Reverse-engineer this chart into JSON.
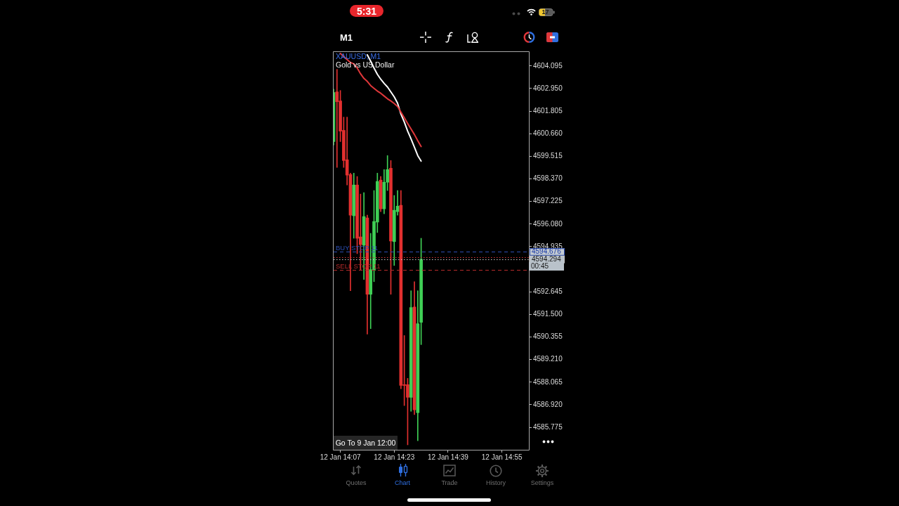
{
  "chart_data": {
    "type": "candlestick",
    "title": "XAUUSD, M1",
    "subtitle": "Gold vs US Dollar",
    "categories": [
      null,
      null,
      "12 Jan 14:07",
      null,
      null,
      null,
      null,
      null,
      null,
      null,
      null,
      null,
      null,
      null,
      null,
      null,
      null,
      null,
      "12 Jan 14:23",
      null,
      null,
      null,
      null,
      null,
      null,
      null,
      null,
      null,
      null,
      null,
      null,
      null,
      null,
      null,
      "12 Jan 14:39",
      null,
      null,
      null,
      null,
      null,
      null,
      null,
      null,
      null,
      null,
      null,
      null,
      null,
      null,
      null,
      "12 Jan 14:55",
      null,
      null,
      null,
      null,
      null,
      null,
      null,
      null
    ],
    "ohlc": [
      [
        4600.26,
        4602.92,
        4600.08,
        4602.75
      ],
      [
        4602.78,
        4603.92,
        4598.95,
        4602.28
      ],
      [
        4602.32,
        4602.85,
        4600.26,
        4600.79
      ],
      [
        4600.83,
        4601.5,
        4598.95,
        4599.3
      ],
      [
        4599.34,
        4601.5,
        4598.06,
        4598.56
      ],
      [
        4598.59,
        4598.66,
        4592.7,
        4596.53
      ],
      [
        4596.5,
        4598.66,
        4595.36,
        4598.06
      ],
      [
        4598.06,
        4598.49,
        4594.58,
        4595.36
      ],
      [
        4595.43,
        4597.6,
        4593.77,
        4595.04
      ],
      [
        4595.01,
        4597.67,
        4593.27,
        4596.46
      ],
      [
        4596.39,
        4596.53,
        4590.5,
        4592.52
      ],
      [
        4592.52,
        4595.61,
        4590.78,
        4593.77
      ],
      [
        4593.73,
        4597.78,
        4593.16,
        4596.21
      ],
      [
        4596.18,
        4598.66,
        4595.65,
        4598.24
      ],
      [
        4598.31,
        4598.49,
        4596.71,
        4596.85
      ],
      [
        4596.85,
        4598.84,
        4596.6,
        4598.2
      ],
      [
        4598.2,
        4599.55,
        4597.78,
        4598.84
      ],
      [
        4598.91,
        4599.3,
        4592.52,
        4595.22
      ],
      [
        4595.19,
        4597.53,
        4593.98,
        4596.78
      ],
      [
        4596.71,
        4597.78,
        4596.53,
        4596.99
      ],
      [
        4597.03,
        4597.78,
        4587.73,
        4587.9
      ],
      [
        4587.94,
        4590.43,
        4586.88,
        4587.9
      ],
      [
        4587.94,
        4588.26,
        4584.89,
        4587.3
      ],
      [
        4587.3,
        4592.7,
        4586.59,
        4591.85
      ],
      [
        4591.88,
        4593.16,
        4586.42,
        4586.66
      ],
      [
        4586.52,
        4592.7,
        4585.1,
        4591.03
      ],
      [
        4591.1,
        4595.36,
        4589.97,
        4594.29
      ],
      null,
      null,
      null,
      null,
      null,
      null,
      null,
      null,
      null,
      null,
      null,
      null,
      null,
      null,
      null,
      null,
      null,
      null,
      null,
      null,
      null,
      null,
      null,
      null,
      null,
      null,
      null,
      null,
      null,
      null,
      null,
      null
    ],
    "colors": [
      "#3fcf55",
      "#e3302f",
      "#e3302f",
      "#e3302f",
      "#e3302f",
      "#e3302f",
      "#3fcf55",
      "#e3302f",
      "#e3302f",
      "#3fcf55",
      "#e3302f",
      "#3fcf55",
      "#3fcf55",
      "#3fcf55",
      "#e3302f",
      "#3fcf55",
      "#3fcf55",
      "#e3302f",
      "#3fcf55",
      "#3fcf55",
      "#e3302f",
      "#e3302f",
      "#e3302f",
      "#3fcf55",
      "#e3302f",
      "#3fcf55",
      "#3fcf55",
      null,
      null,
      null,
      null,
      null,
      null,
      null,
      null,
      null,
      null,
      null,
      null,
      null,
      null,
      null,
      null,
      null,
      null,
      null,
      null,
      null,
      null,
      null,
      null,
      null,
      null,
      null,
      null,
      null,
      null,
      null,
      null
    ],
    "series": [
      {
        "type": "line",
        "color": "#e0373a",
        "values": [
          null,
          null,
          4604.73,
          4604.57,
          4604.42,
          4604.27,
          4604.2,
          4603.99,
          4603.7,
          4603.46,
          4603.31,
          4603.1,
          4602.96,
          4602.82,
          4602.71,
          4602.57,
          4602.43,
          4602.32,
          4602.19,
          4602.04,
          4601.75,
          4601.47,
          4601.18,
          4600.9,
          4600.62,
          4600.3,
          4600.01,
          null,
          null,
          null,
          null,
          null,
          null,
          null,
          null,
          null,
          null,
          null,
          null,
          null,
          null,
          null,
          null,
          null,
          null,
          null,
          null,
          null,
          null,
          null,
          null,
          null,
          null,
          null,
          null,
          null,
          null,
          null,
          null
        ]
      },
      {
        "type": "line",
        "color": "#ffffff",
        "values": [
          null,
          null,
          null,
          null,
          null,
          null,
          null,
          null,
          null,
          null,
          4604.66,
          4604.34,
          4603.99,
          4603.67,
          4603.42,
          4603.21,
          4603.03,
          4602.78,
          4602.53,
          4602.21,
          4601.65,
          4601.25,
          4600.79,
          4600.4,
          4599.98,
          4599.55,
          4599.27,
          null,
          null,
          null,
          null,
          null,
          null,
          null,
          null,
          null,
          null,
          null,
          null,
          null,
          null,
          null,
          null,
          null,
          null,
          null,
          null,
          null,
          null,
          null,
          null,
          null,
          null,
          null,
          null,
          null,
          null,
          null,
          null
        ]
      }
    ],
    "ylim": [
      4584.64,
      4604.8
    ],
    "yticks": [
      4585.775,
      {
        "value": 4586.92,
        "label": "4586.920"
      },
      4588.065,
      {
        "value": 4589.21,
        "label": "4589.210"
      },
      4590.355,
      {
        "value": 4591.5,
        "label": "4591.500"
      },
      4592.645,
      4594.935,
      {
        "value": 4596.08,
        "label": "4596.080"
      },
      4597.225,
      {
        "value": 4598.37,
        "label": "4598.370"
      },
      4599.515,
      {
        "value": 4600.66,
        "label": "4600.660"
      },
      4601.805,
      {
        "value": 4602.95,
        "label": "4602.950"
      },
      4604.095
    ],
    "ref_lines": [
      {
        "axis": "y",
        "value": 4594.676,
        "label": "BUY STOP 11",
        "color": "#2d4fb4",
        "line_style": "dashed"
      },
      {
        "axis": "y",
        "value": 4594.4,
        "color": "#d83535",
        "line_style": "dotted"
      },
      {
        "axis": "y",
        "value": 4594.294,
        "color": "#c8c8c8",
        "line_style": "dotted"
      },
      {
        "axis": "y",
        "value": 4593.77,
        "label": "SELL STOP 11",
        "color": "#b52a2a",
        "line_style": "dashed"
      }
    ],
    "annotations": [
      "4594.676",
      "4594.294",
      "00:45",
      "5:31",
      "17",
      "M1",
      "Go To 9 Jan 12:00",
      "Quotes",
      "Chart",
      "Trade",
      "History",
      "Settings"
    ]
  }
}
